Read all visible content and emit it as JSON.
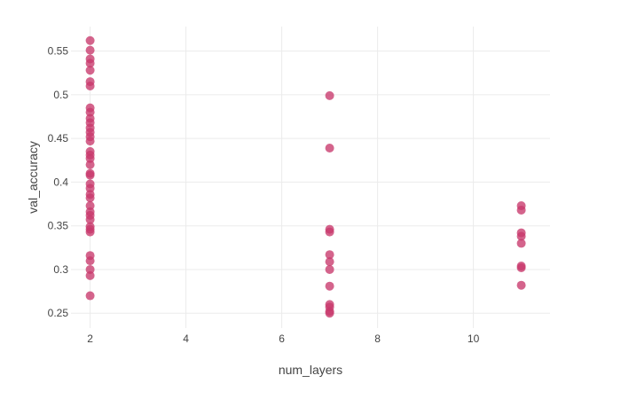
{
  "chart_data": {
    "type": "scatter",
    "xlabel": "num_layers",
    "ylabel": "val_accuracy",
    "xlim": [
      1.6,
      11.6
    ],
    "ylim": [
      0.233,
      0.578
    ],
    "x_ticks": [
      2,
      4,
      6,
      8,
      10
    ],
    "y_ticks": [
      0.25,
      0.3,
      0.35,
      0.4,
      0.45,
      0.5,
      0.55
    ],
    "x_tick_labels": [
      "2",
      "4",
      "6",
      "8",
      "10"
    ],
    "y_tick_labels": [
      "0.25",
      "0.3",
      "0.35",
      "0.4",
      "0.45",
      "0.5",
      "0.55"
    ],
    "grid": true,
    "marker_color": "#c8386b",
    "series": [
      {
        "points": [
          {
            "x": 2,
            "y": 0.562
          },
          {
            "x": 2,
            "y": 0.551
          },
          {
            "x": 2,
            "y": 0.541
          },
          {
            "x": 2,
            "y": 0.536
          },
          {
            "x": 2,
            "y": 0.528
          },
          {
            "x": 2,
            "y": 0.515
          },
          {
            "x": 2,
            "y": 0.51
          },
          {
            "x": 2,
            "y": 0.485
          },
          {
            "x": 2,
            "y": 0.48
          },
          {
            "x": 2,
            "y": 0.473
          },
          {
            "x": 2,
            "y": 0.468
          },
          {
            "x": 2,
            "y": 0.462
          },
          {
            "x": 2,
            "y": 0.457
          },
          {
            "x": 2,
            "y": 0.452
          },
          {
            "x": 2,
            "y": 0.447
          },
          {
            "x": 2,
            "y": 0.435
          },
          {
            "x": 2,
            "y": 0.431
          },
          {
            "x": 2,
            "y": 0.427
          },
          {
            "x": 2,
            "y": 0.42
          },
          {
            "x": 2,
            "y": 0.41
          },
          {
            "x": 2,
            "y": 0.408
          },
          {
            "x": 2,
            "y": 0.398
          },
          {
            "x": 2,
            "y": 0.393
          },
          {
            "x": 2,
            "y": 0.386
          },
          {
            "x": 2,
            "y": 0.382
          },
          {
            "x": 2,
            "y": 0.373
          },
          {
            "x": 2,
            "y": 0.366
          },
          {
            "x": 2,
            "y": 0.362
          },
          {
            "x": 2,
            "y": 0.357
          },
          {
            "x": 2,
            "y": 0.349
          },
          {
            "x": 2,
            "y": 0.346
          },
          {
            "x": 2,
            "y": 0.343
          },
          {
            "x": 2,
            "y": 0.316
          },
          {
            "x": 2,
            "y": 0.31
          },
          {
            "x": 2,
            "y": 0.3
          },
          {
            "x": 2,
            "y": 0.293
          },
          {
            "x": 2,
            "y": 0.27
          },
          {
            "x": 7,
            "y": 0.499
          },
          {
            "x": 7,
            "y": 0.439
          },
          {
            "x": 7,
            "y": 0.346
          },
          {
            "x": 7,
            "y": 0.343
          },
          {
            "x": 7,
            "y": 0.317
          },
          {
            "x": 7,
            "y": 0.309
          },
          {
            "x": 7,
            "y": 0.3
          },
          {
            "x": 7,
            "y": 0.281
          },
          {
            "x": 7,
            "y": 0.26
          },
          {
            "x": 7,
            "y": 0.257
          },
          {
            "x": 7,
            "y": 0.252
          },
          {
            "x": 7,
            "y": 0.25
          },
          {
            "x": 11,
            "y": 0.373
          },
          {
            "x": 11,
            "y": 0.368
          },
          {
            "x": 11,
            "y": 0.342
          },
          {
            "x": 11,
            "y": 0.338
          },
          {
            "x": 11,
            "y": 0.33
          },
          {
            "x": 11,
            "y": 0.304
          },
          {
            "x": 11,
            "y": 0.302
          },
          {
            "x": 11,
            "y": 0.282
          }
        ]
      }
    ]
  }
}
